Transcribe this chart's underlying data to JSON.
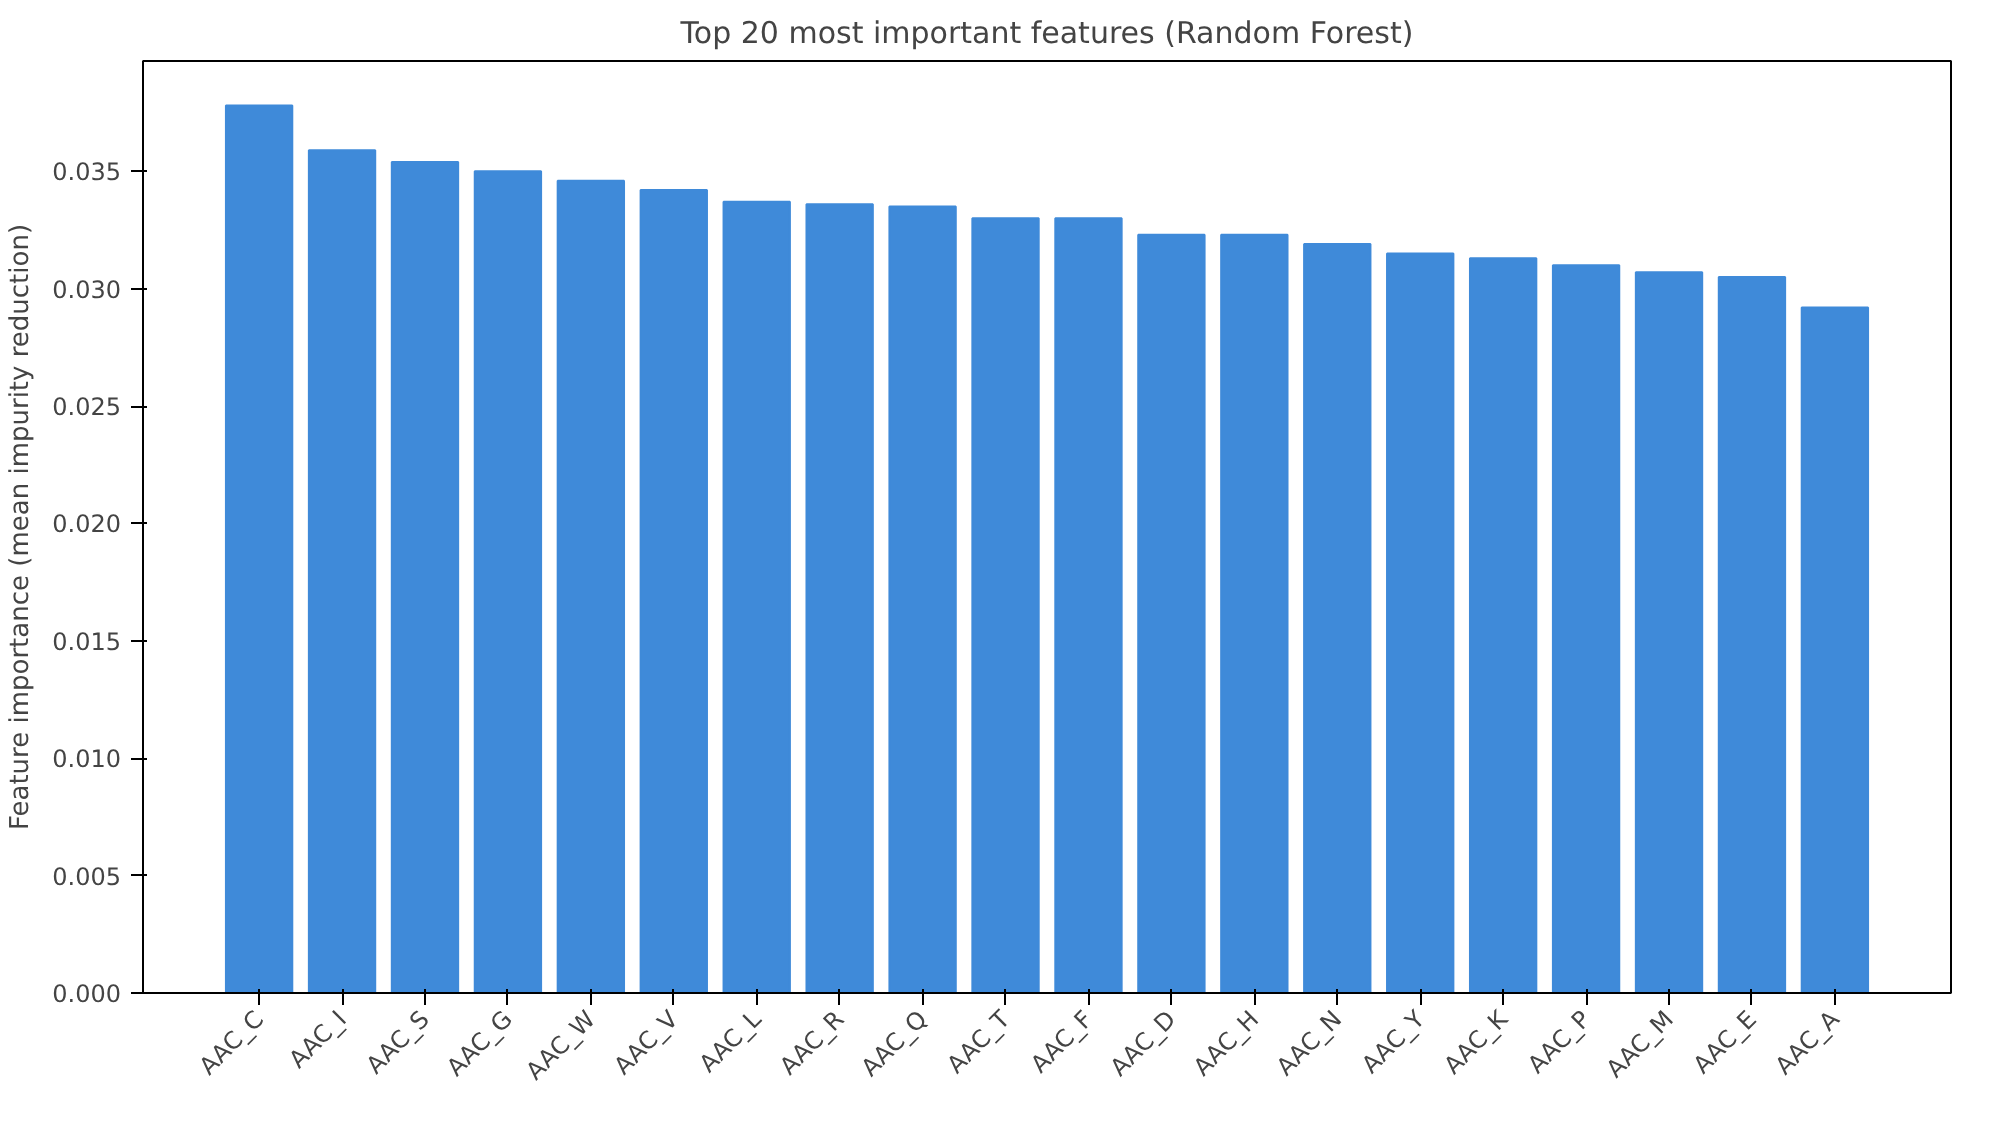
{
  "chart_data": {
    "type": "bar",
    "title": "Top 20 most important features (Random Forest)",
    "ylabel": "Feature importance (mean impurity reduction)",
    "categories": [
      "AAC_C",
      "AAC_I",
      "AAC_S",
      "AAC_G",
      "AAC_W",
      "AAC_V",
      "AAC_L",
      "AAC_R",
      "AAC_Q",
      "AAC_T",
      "AAC_F",
      "AAC_D",
      "AAC_H",
      "AAC_N",
      "AAC_Y",
      "AAC_K",
      "AAC_P",
      "AAC_M",
      "AAC_E",
      "AAC_A"
    ],
    "values": [
      0.0378,
      0.0359,
      0.0354,
      0.035,
      0.0346,
      0.0342,
      0.0337,
      0.0336,
      0.0335,
      0.033,
      0.033,
      0.0323,
      0.0323,
      0.0319,
      0.0315,
      0.0313,
      0.031,
      0.0307,
      0.0305,
      0.0292
    ],
    "color": "#3f8ad9",
    "ylim": [
      0,
      0.0397
    ],
    "yticks": [
      {
        "value": 0,
        "label": "0.000"
      },
      {
        "value": 0.005,
        "label": "0.005"
      },
      {
        "value": 0.01,
        "label": "0.010"
      },
      {
        "value": 0.015,
        "label": "0.015"
      },
      {
        "value": 0.02,
        "label": "0.020"
      },
      {
        "value": 0.025,
        "label": "0.025"
      },
      {
        "value": 0.03,
        "label": "0.030"
      },
      {
        "value": 0.035,
        "label": "0.035"
      }
    ],
    "grid": false
  }
}
